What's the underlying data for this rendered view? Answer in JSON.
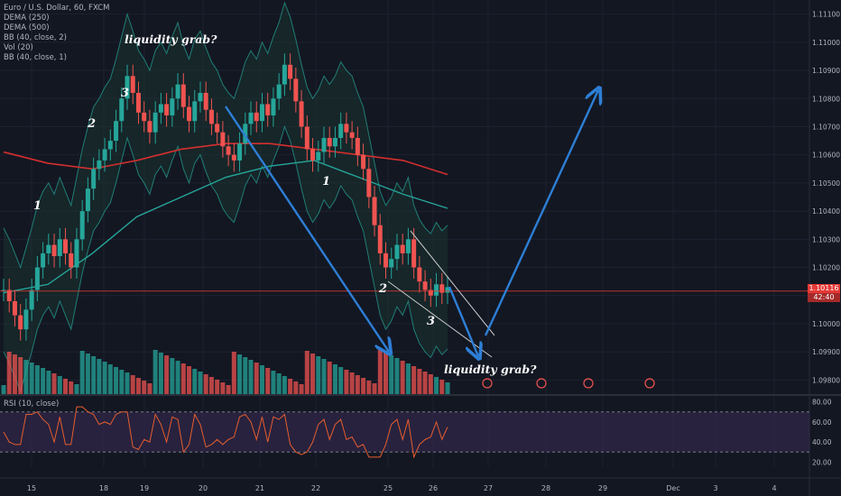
{
  "legend": {
    "symbol": "Euro / U.S. Dollar, 60, FXCM",
    "lines": [
      "DEMA (250)",
      "DEMA (500)",
      "BB (40, close, 2)",
      "Vol (20)",
      "BB (40, close, 1)"
    ]
  },
  "rsi_label": "RSI (10, close)",
  "price_tag": {
    "price": "1.10116",
    "countdown": "42:40"
  },
  "annotations": {
    "liquidity_top": "liquidity grab?",
    "liquidity_bottom": "liquidity grab?",
    "wave_1a": "1",
    "wave_2a": "2",
    "wave_3a": "3",
    "wave_1b": "1",
    "wave_2b": "2",
    "wave_3b": "3"
  },
  "colors": {
    "background": "#131722",
    "grid": "#1e2230",
    "up": "#26a69a",
    "down": "#ef5350",
    "arrow": "#2d7fd6",
    "dema250": "#d32f2f",
    "dema500": "#26a69a",
    "bb_fill": "#1b3a34",
    "rsi_band": "#3a2c55",
    "rsi_line": "#e65d2e"
  },
  "chart_data": {
    "type": "candlestick",
    "title": "Euro / U.S. Dollar, 60, FXCM",
    "price_axis": {
      "ticks": [
        "1.11100",
        "1.11000",
        "1.10900",
        "1.10800",
        "1.10700",
        "1.10600",
        "1.10500",
        "1.10400",
        "1.10300",
        "1.10200",
        "1.10100",
        "1.10000",
        "1.09900",
        "1.09800"
      ],
      "range": [
        1.0975,
        1.1115
      ]
    },
    "time_axis": {
      "ticks": [
        "15",
        "18",
        "19",
        "20",
        "21",
        "22",
        "25",
        "26",
        "27",
        "28",
        "29",
        "Dec",
        "3",
        "4"
      ]
    },
    "rsi_axis": {
      "ticks": [
        "80.00",
        "60.00",
        "40.00",
        "20.00"
      ],
      "range": [
        15,
        85
      ],
      "bands": [
        30,
        70
      ]
    },
    "close_series": [
      1.1012,
      1.1008,
      1.1003,
      1.0998,
      1.1005,
      1.1012,
      1.102,
      1.1025,
      1.1028,
      1.1024,
      1.103,
      1.1025,
      1.102,
      1.103,
      1.104,
      1.1048,
      1.1055,
      1.1058,
      1.1062,
      1.1065,
      1.1072,
      1.108,
      1.1088,
      1.1082,
      1.1075,
      1.1072,
      1.1068,
      1.1075,
      1.1078,
      1.1074,
      1.108,
      1.1085,
      1.1077,
      1.1072,
      1.1079,
      1.1082,
      1.1076,
      1.1071,
      1.1068,
      1.1063,
      1.106,
      1.1058,
      1.1064,
      1.1071,
      1.1075,
      1.1072,
      1.1078,
      1.1074,
      1.108,
      1.1085,
      1.1092,
      1.1087,
      1.1079,
      1.107,
      1.1062,
      1.1058,
      1.1061,
      1.1066,
      1.1063,
      1.1066,
      1.1071,
      1.1068,
      1.1066,
      1.106,
      1.1055,
      1.1045,
      1.1035,
      1.1025,
      1.102,
      1.1023,
      1.1028,
      1.1025,
      1.103,
      1.102,
      1.1015,
      1.1012,
      1.101,
      1.1014,
      1.1011,
      1.1013
    ]
  }
}
